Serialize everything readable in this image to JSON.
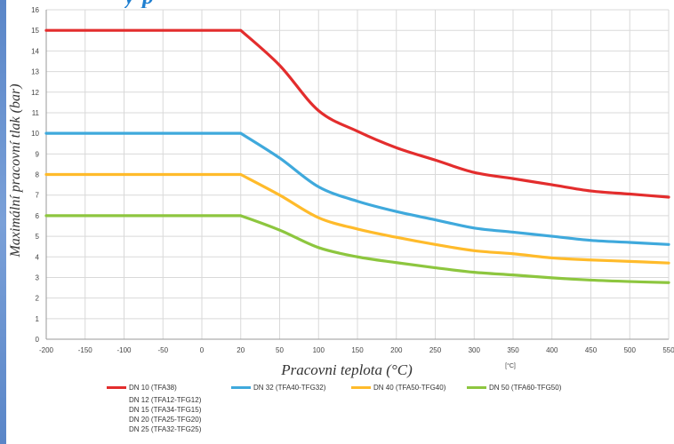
{
  "header": {
    "title_fragment": "y                    p"
  },
  "chart_data": {
    "type": "line",
    "title": "",
    "xlabel": "Pracovni teplota (°C)",
    "ylabel": "Maximální pracovní tlak (bar)",
    "unit_label": "[°C]",
    "x_ticks": [
      "-200",
      "-150",
      "-100",
      "-50",
      "0",
      "20",
      "50",
      "100",
      "150",
      "200",
      "250",
      "300",
      "350",
      "400",
      "450",
      "500",
      "550"
    ],
    "y_ticks": [
      "0",
      "1",
      "2",
      "3",
      "4",
      "5",
      "6",
      "7",
      "8",
      "9",
      "10",
      "11",
      "12",
      "13",
      "14",
      "15",
      "16"
    ],
    "ylim": [
      0,
      16
    ],
    "grid": true,
    "legend_position": "bottom",
    "series": [
      {
        "name": "DN 10 (TFA38)",
        "color": "#e32d2d",
        "x": [
          "-200",
          "20",
          "50",
          "100",
          "150",
          "200",
          "250",
          "300",
          "350",
          "400",
          "450",
          "500",
          "550"
        ],
        "y": [
          15,
          15,
          13.3,
          11.1,
          10.1,
          9.3,
          8.7,
          8.1,
          7.8,
          7.5,
          7.2,
          7.05,
          6.9
        ]
      },
      {
        "name": "DN 32 (TFA40-TFG32)",
        "color": "#3fa9dc",
        "x": [
          "-200",
          "20",
          "50",
          "100",
          "150",
          "200",
          "250",
          "300",
          "350",
          "400",
          "450",
          "500",
          "550"
        ],
        "y": [
          10,
          10,
          8.8,
          7.4,
          6.7,
          6.2,
          5.8,
          5.4,
          5.2,
          5.0,
          4.8,
          4.7,
          4.6
        ]
      },
      {
        "name": "DN 40 (TFA50-TFG40)",
        "color": "#ffbb2b",
        "x": [
          "-200",
          "20",
          "50",
          "100",
          "150",
          "200",
          "250",
          "300",
          "350",
          "400",
          "450",
          "500",
          "550"
        ],
        "y": [
          8,
          8,
          7.0,
          5.9,
          5.35,
          4.95,
          4.6,
          4.3,
          4.15,
          3.95,
          3.85,
          3.78,
          3.7
        ]
      },
      {
        "name": "DN 50 (TFA60-TFG50)",
        "color": "#8dc63f",
        "x": [
          "-200",
          "20",
          "50",
          "100",
          "150",
          "200",
          "250",
          "300",
          "350",
          "400",
          "450",
          "500",
          "550"
        ],
        "y": [
          6,
          6,
          5.3,
          4.45,
          4.0,
          3.72,
          3.47,
          3.25,
          3.12,
          2.98,
          2.87,
          2.8,
          2.75
        ]
      }
    ],
    "legend_extra": [
      "DN 12 (TFA12-TFG12)",
      "DN 15 (TFA34-TFG15)",
      "DN 20 (TFA25-TFG20)",
      "DN 25 (TFA32-TFG25)"
    ]
  }
}
